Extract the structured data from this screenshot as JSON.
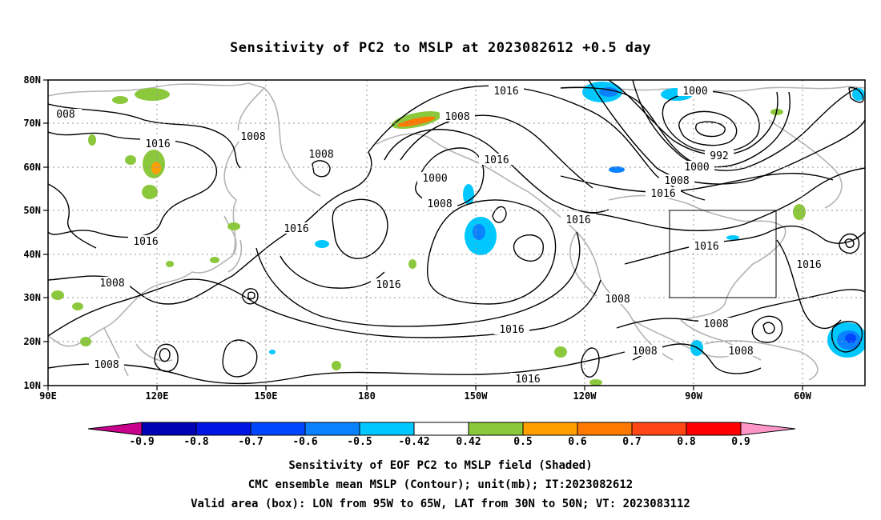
{
  "title": "Sensitivity of PC2 to MSLP at 2023082612 +0.5 day",
  "map": {
    "lon_ticks": [
      "90E",
      "120E",
      "150E",
      "180",
      "150W",
      "120W",
      "90W",
      "60W"
    ],
    "lat_ticks": [
      "80N",
      "70N",
      "60N",
      "50N",
      "40N",
      "30N",
      "20N",
      "10N"
    ],
    "contour_labels": [
      "008",
      "1016",
      "1008",
      "1008",
      "1008",
      "1016",
      "1008",
      "1000",
      "1008",
      "1016",
      "1016",
      "1016",
      "1016",
      "1016",
      "1016",
      "1000",
      "992",
      "1000",
      "1008",
      "1016",
      "1016",
      "1016",
      "1016",
      "1008",
      "1008",
      "1008",
      "1008",
      "1008"
    ],
    "valid_box": {
      "lon_from": "95W",
      "lon_to": "65W",
      "lat_from": "30N",
      "lat_to": "50N"
    },
    "grid": true
  },
  "colorbar": {
    "labels": [
      "-0.9",
      "-0.8",
      "-0.7",
      "-0.6",
      "-0.5",
      "-0.42",
      "0.42",
      "0.5",
      "0.6",
      "0.7",
      "0.8",
      "0.9"
    ],
    "colors": [
      "#c8008c",
      "#0000b4",
      "#0014e6",
      "#0046ff",
      "#0a82ff",
      "#00c8ff",
      "#ffffff",
      "#8cc83c",
      "#ffa000",
      "#ff7800",
      "#ff4614",
      "#ff0000",
      "#ff96c8"
    ]
  },
  "captions": {
    "line1": "Sensitivity of EOF PC2 to MSLP field (Shaded)",
    "line2": "CMC ensemble mean MSLP (Contour); unit(mb); IT:2023082612",
    "line3": "Valid area (box): LON from 95W to 65W, LAT from 30N to 50N; VT: 2023083112"
  }
}
